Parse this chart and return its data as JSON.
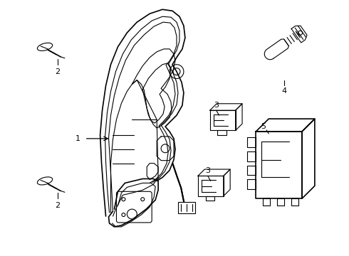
{
  "background_color": "#ffffff",
  "line_color": "#000000",
  "fig_width": 4.9,
  "fig_height": 3.6,
  "dpi": 100,
  "label_fontsize": 8,
  "line_width": 1.2,
  "thin_line": 0.8
}
